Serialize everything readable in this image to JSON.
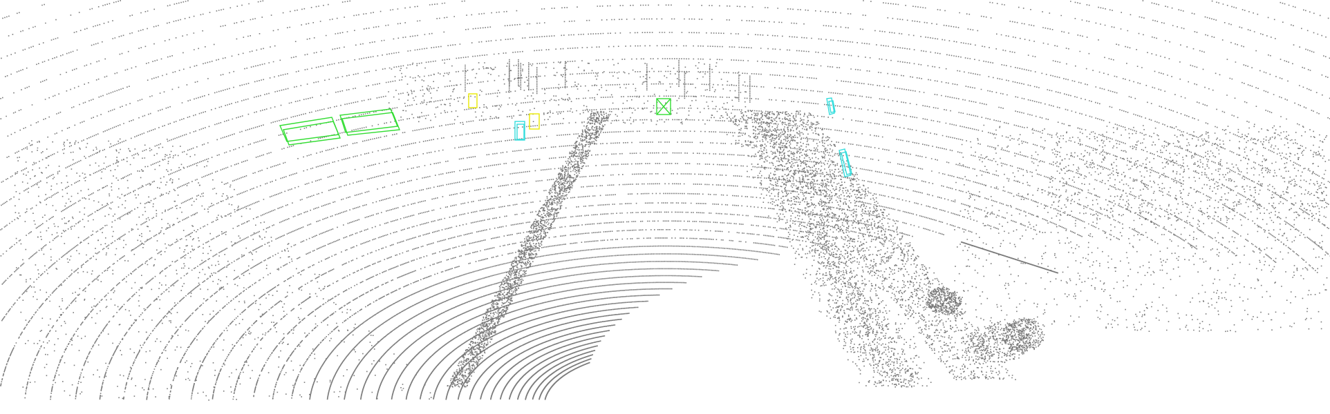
{
  "scene": {
    "background_color": "#ffffff",
    "point_color": "#7a7a7a",
    "box_colors": {
      "car": "#33dd33",
      "pedestrian": "#33dddd",
      "cyclist": "#e8e800"
    }
  },
  "objects": [
    {
      "class": "car",
      "count": 3
    },
    {
      "class": "pedestrian",
      "count": 3
    },
    {
      "class": "cyclist",
      "count": 2
    }
  ]
}
